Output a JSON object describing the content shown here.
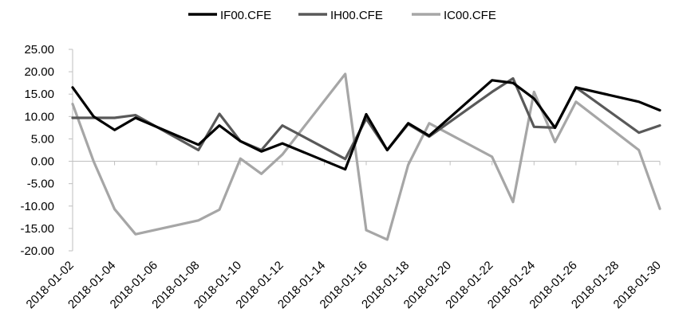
{
  "chart_data": {
    "type": "line",
    "x": [
      "2018-01-02",
      "2018-01-03",
      "2018-01-04",
      "2018-01-05",
      "2018-01-08",
      "2018-01-09",
      "2018-01-10",
      "2018-01-11",
      "2018-01-12",
      "2018-01-15",
      "2018-01-16",
      "2018-01-17",
      "2018-01-18",
      "2018-01-19",
      "2018-01-22",
      "2018-01-23",
      "2018-01-24",
      "2018-01-25",
      "2018-01-26",
      "2018-01-29",
      "2018-01-30"
    ],
    "x_ticks": [
      "2018-01-02",
      "2018-01-04",
      "2018-01-06",
      "2018-01-08",
      "2018-01-10",
      "2018-01-12",
      "2018-01-14",
      "2018-01-16",
      "2018-01-18",
      "2018-01-20",
      "2018-01-22",
      "2018-01-24",
      "2018-01-26",
      "2018-01-28",
      "2018-01-30"
    ],
    "y_ticks": [
      "25.00",
      "20.00",
      "15.00",
      "10.00",
      "5.00",
      "0.00",
      "-5.00",
      "-10.00",
      "-15.00",
      "-20.00"
    ],
    "ylim": [
      -20,
      25
    ],
    "series": [
      {
        "name": "IF00.CFE",
        "color": "#000000",
        "values": [
          16.5,
          10.0,
          7.0,
          9.7,
          3.7,
          8.0,
          4.5,
          2.2,
          4.0,
          -1.8,
          10.5,
          2.5,
          8.5,
          5.7,
          18.1,
          17.5,
          14.0,
          7.5,
          16.5,
          13.3,
          11.4
        ]
      },
      {
        "name": "IH00.CFE",
        "color": "#595959",
        "values": [
          9.7,
          9.7,
          9.7,
          10.3,
          2.5,
          10.6,
          4.5,
          2.5,
          8.0,
          0.5,
          9.5,
          2.5,
          8.3,
          5.5,
          15.5,
          18.5,
          7.7,
          7.5,
          16.5,
          6.4,
          8.0
        ]
      },
      {
        "name": "IC00.CFE",
        "color": "#a6a6a6",
        "values": [
          12.8,
          0.0,
          -10.7,
          -16.3,
          -13.2,
          -10.8,
          0.6,
          -2.8,
          1.5,
          19.5,
          -15.4,
          -17.5,
          -0.8,
          8.5,
          1.0,
          -9.1,
          15.5,
          4.3,
          13.3,
          2.5,
          -10.6
        ]
      }
    ],
    "legend_position": "top",
    "grid": false
  }
}
